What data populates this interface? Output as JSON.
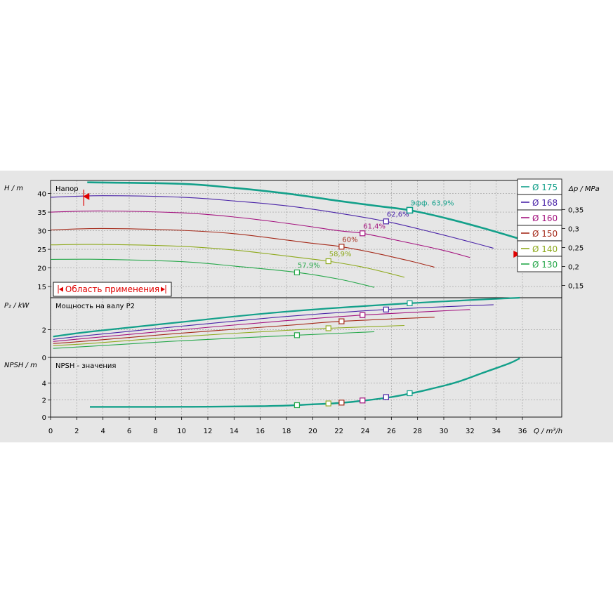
{
  "chart_data": [
    {
      "type": "line",
      "panel": "head",
      "panel_title": "Напор",
      "ylabel": "H / m",
      "ylabel_right": "Δp / MPa",
      "xlabel": "Q / m³/h",
      "xlim": [
        0,
        39
      ],
      "ylim": [
        12,
        43.5
      ],
      "yticks": [
        15,
        20,
        25,
        30,
        35,
        40
      ],
      "yticks_right": [
        "0,15",
        "0,2",
        "0,25",
        "0,3",
        "0,35"
      ],
      "yticks_right_values": [
        15.3,
        20.4,
        25.5,
        30.6,
        35.7
      ],
      "grid": true,
      "legend_position": "right",
      "application_range_label": "Область применения",
      "series": [
        {
          "name": "Ø 175",
          "color": "#13A08A",
          "x": [
            2.8,
            10,
            14,
            18,
            22,
            25,
            27.4,
            30,
            33,
            35.8
          ],
          "values": [
            43,
            42.6,
            41.5,
            40,
            38,
            36.6,
            35.5,
            33.5,
            30.7,
            27.8
          ],
          "bep": {
            "x": 27.4,
            "y": 35.5,
            "label": "Эфф.  63,9%"
          }
        },
        {
          "name": "Ø 168",
          "color": "#4B25A8",
          "x": [
            0,
            4,
            10,
            14,
            18,
            22,
            25.6,
            29,
            32,
            33.8
          ],
          "values": [
            39,
            39.4,
            39,
            38,
            36.7,
            34.7,
            32.5,
            29.7,
            27,
            25.3
          ],
          "bep": {
            "x": 25.6,
            "y": 32.5,
            "label": "62,6%"
          }
        },
        {
          "name": "Ø 160",
          "color": "#A4137F",
          "x": [
            0,
            4,
            10,
            14,
            18,
            22,
            23.8,
            27,
            30,
            32
          ],
          "values": [
            35,
            35.3,
            34.8,
            33.7,
            32,
            30,
            29.3,
            27,
            24.7,
            22.8
          ],
          "bep": {
            "x": 23.8,
            "y": 29.3,
            "label": "61,4%"
          }
        },
        {
          "name": "Ø 150",
          "color": "#A52A1A",
          "x": [
            0,
            4,
            10,
            14,
            18,
            20,
            22.2,
            25,
            27.5,
            29.3
          ],
          "values": [
            30.2,
            30.6,
            30.1,
            29.2,
            27.5,
            26.6,
            25.7,
            23.8,
            21.8,
            20.2
          ],
          "bep": {
            "x": 22.2,
            "y": 25.7,
            "label": "60%"
          }
        },
        {
          "name": "Ø 140",
          "color": "#8FAA1F",
          "x": [
            0,
            4,
            10,
            14,
            18,
            21.2,
            24,
            27
          ],
          "values": [
            26.2,
            26.3,
            25.8,
            24.8,
            23.2,
            21.8,
            20.1,
            17.5
          ],
          "bep": {
            "x": 21.2,
            "y": 21.8,
            "label": "58,9%"
          }
        },
        {
          "name": "Ø 130",
          "color": "#27A84B",
          "x": [
            0,
            4,
            10,
            14,
            18.8,
            22,
            24.7
          ],
          "values": [
            22.3,
            22.3,
            21.7,
            20.5,
            18.8,
            17,
            14.8
          ],
          "bep": {
            "x": 18.8,
            "y": 18.8,
            "label": "57,9%"
          }
        }
      ]
    },
    {
      "type": "line",
      "panel": "power",
      "panel_title": "Мощность на валу P2",
      "ylabel": "P₂ / kW",
      "xlim": [
        0,
        39
      ],
      "ylim": [
        0,
        4.3
      ],
      "yticks": [
        0,
        2
      ],
      "grid": true,
      "series": [
        {
          "name": "Ø 175",
          "color": "#13A08A",
          "x": [
            0.2,
            3,
            10,
            18,
            27.4,
            35.8
          ],
          "values": [
            1.5,
            1.85,
            2.55,
            3.3,
            3.9,
            4.3
          ],
          "bep_x": 27.4,
          "bep_y": 3.9
        },
        {
          "name": "Ø 168",
          "color": "#4B25A8",
          "x": [
            0.2,
            3,
            10,
            18,
            25.6,
            33.8
          ],
          "values": [
            1.3,
            1.6,
            2.25,
            2.95,
            3.45,
            3.8
          ],
          "bep_x": 25.6,
          "bep_y": 3.45
        },
        {
          "name": "Ø 160",
          "color": "#A4137F",
          "x": [
            0.2,
            3,
            10,
            18,
            23.8,
            32
          ],
          "values": [
            1.15,
            1.4,
            2.0,
            2.65,
            3.05,
            3.45
          ],
          "bep_x": 23.8,
          "bep_y": 3.05
        },
        {
          "name": "Ø 150",
          "color": "#A52A1A",
          "x": [
            0.2,
            3,
            10,
            18,
            22.2,
            29.3
          ],
          "values": [
            1.0,
            1.2,
            1.75,
            2.3,
            2.6,
            2.9
          ],
          "bep_x": 22.2,
          "bep_y": 2.6
        },
        {
          "name": "Ø 140",
          "color": "#8FAA1F",
          "x": [
            0.2,
            3,
            10,
            18,
            21.2,
            27
          ],
          "values": [
            0.85,
            1.0,
            1.5,
            1.95,
            2.1,
            2.3
          ],
          "bep_x": 21.2,
          "bep_y": 2.1
        },
        {
          "name": "Ø 130",
          "color": "#27A84B",
          "x": [
            0.2,
            3,
            10,
            18.8,
            24.7
          ],
          "values": [
            0.65,
            0.8,
            1.2,
            1.6,
            1.85
          ],
          "bep_x": 18.8,
          "bep_y": 1.6
        }
      ]
    },
    {
      "type": "line",
      "panel": "npsh",
      "panel_title": "NPSH - значения",
      "ylabel": "NPSH / m",
      "xlabel": "Q / m³/h",
      "xlim": [
        0,
        39
      ],
      "ylim": [
        0,
        7
      ],
      "yticks": [
        0,
        2,
        4
      ],
      "xticks": [
        0,
        2,
        4,
        6,
        8,
        10,
        12,
        14,
        16,
        18,
        20,
        22,
        24,
        26,
        28,
        30,
        32,
        34,
        36
      ],
      "grid": true,
      "series": [
        {
          "name": "Ø 175",
          "color": "#13A08A",
          "x": [
            3,
            8,
            12,
            16,
            18,
            20,
            22,
            24,
            26,
            27.4,
            29,
            31,
            33,
            35,
            35.8
          ],
          "values": [
            1.2,
            1.2,
            1.22,
            1.28,
            1.35,
            1.5,
            1.65,
            1.95,
            2.35,
            2.75,
            3.3,
            4.1,
            5.2,
            6.3,
            6.9
          ]
        }
      ],
      "markers": [
        {
          "series": "Ø 130",
          "x": 18.8,
          "y": 1.4
        },
        {
          "series": "Ø 140",
          "x": 21.2,
          "y": 1.6
        },
        {
          "series": "Ø 150",
          "x": 22.2,
          "y": 1.7
        },
        {
          "series": "Ø 160",
          "x": 23.8,
          "y": 1.95
        },
        {
          "series": "Ø 168",
          "x": 25.6,
          "y": 2.35
        },
        {
          "series": "Ø 175",
          "x": 27.4,
          "y": 2.8
        }
      ]
    }
  ]
}
